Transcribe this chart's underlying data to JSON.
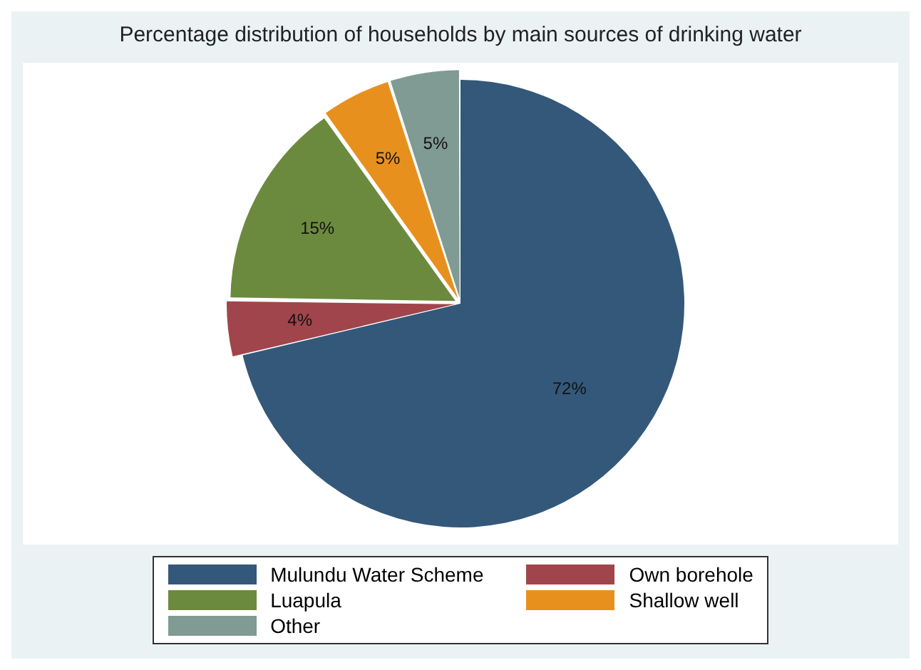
{
  "chart_data": {
    "type": "pie",
    "title": "Percentage distribution of households by main sources of drinking water",
    "categories": [
      "Mulundu Water Scheme",
      "Own borehole",
      "Luapula",
      "Shallow well",
      "Other"
    ],
    "values": [
      72,
      4,
      15,
      5,
      5
    ],
    "value_labels": [
      "72%",
      "4%",
      "15%",
      "5%",
      "5%"
    ],
    "colors": [
      "#33587a",
      "#a0454c",
      "#6b8a3e",
      "#e8901e",
      "#7f9b93"
    ],
    "legend": "bottom"
  }
}
